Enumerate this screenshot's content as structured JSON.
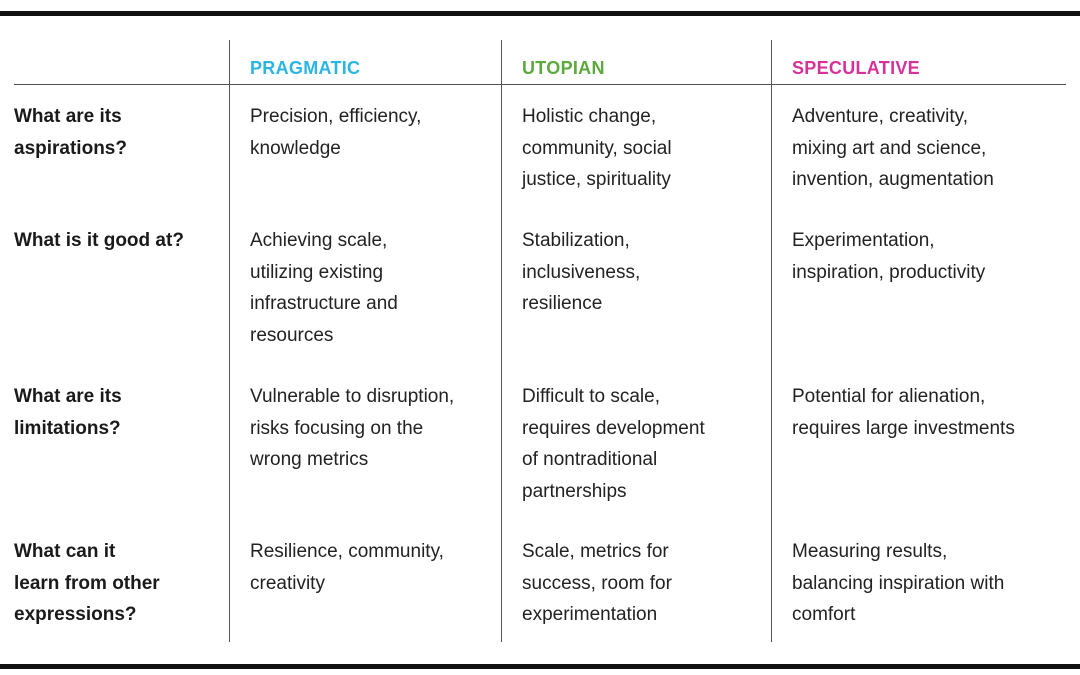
{
  "columns": {
    "pragmatic": {
      "label": "PRAGMATIC",
      "color": "#2bb5e3"
    },
    "utopian": {
      "label": "UTOPIAN",
      "color": "#5aaa3c"
    },
    "speculative": {
      "label": "SPECULATIVE",
      "color": "#d6339a"
    }
  },
  "rows": [
    {
      "label": [
        "What are its",
        "aspirations?"
      ],
      "pragmatic": [
        "Precision, efficiency,",
        "knowledge"
      ],
      "utopian": [
        "Holistic change,",
        "community, social",
        "justice, spirituality"
      ],
      "speculative": [
        "Adventure, creativity,",
        "mixing art and science,",
        "invention, augmentation"
      ]
    },
    {
      "label": [
        "What is it good at?"
      ],
      "pragmatic": [
        "Achieving scale,",
        "utilizing existing",
        "infrastructure and",
        "resources"
      ],
      "utopian": [
        "Stabilization,",
        "inclusiveness,",
        "resilience"
      ],
      "speculative": [
        "Experimentation,",
        "inspiration, productivity"
      ]
    },
    {
      "label": [
        "What are its",
        "limitations?"
      ],
      "pragmatic": [
        "Vulnerable to disruption,",
        "risks focusing on the",
        "wrong metrics"
      ],
      "utopian": [
        "Difficult to scale,",
        "requires development",
        "of nontraditional",
        "partnerships"
      ],
      "speculative": [
        "Potential for alienation,",
        "requires large investments"
      ]
    },
    {
      "label": [
        "What can it",
        "learn from other",
        "expressions?"
      ],
      "pragmatic": [
        "Resilience, community,",
        "creativity"
      ],
      "utopian": [
        "Scale, metrics for",
        "success, room for",
        "experimentation"
      ],
      "speculative": [
        "Measuring results,",
        "balancing inspiration with",
        "comfort"
      ]
    }
  ]
}
